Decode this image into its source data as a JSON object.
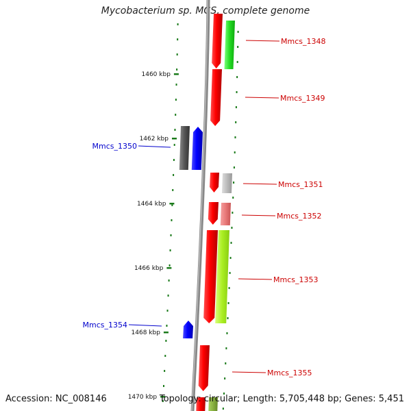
{
  "title": "Mycobacterium sp. MCS, complete genome",
  "accession": "Accession: NC_008146",
  "topology": "Topology: circular; Length: 5,705,448 bp; Genes: 5,451",
  "ruler_ticks": [
    {
      "label": "1460 kbp"
    },
    {
      "label": "1462 kbp"
    },
    {
      "label": "1464 kbp"
    },
    {
      "label": "1466 kbp"
    },
    {
      "label": "1468 kbp"
    },
    {
      "label": "1470 kbp"
    }
  ],
  "gene_labels": [
    {
      "name": "Mmcs_1348",
      "color": "#cc0000"
    },
    {
      "name": "Mmcs_1349",
      "color": "#cc0000"
    },
    {
      "name": "Mmcs_1350",
      "color": "#0000cc"
    },
    {
      "name": "Mmcs_1351",
      "color": "#cc0000"
    },
    {
      "name": "Mmcs_1352",
      "color": "#cc0000"
    },
    {
      "name": "Mmcs_1353",
      "color": "#cc0000"
    },
    {
      "name": "Mmcs_1354",
      "color": "#0000cc"
    },
    {
      "name": "Mmcs_1355",
      "color": "#cc0000"
    }
  ]
}
